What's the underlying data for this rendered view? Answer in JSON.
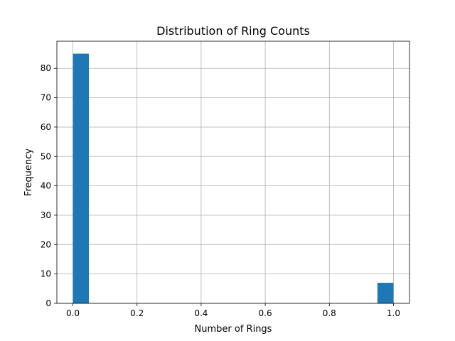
{
  "chart_data": {
    "type": "bar",
    "subtype": "histogram",
    "title": "Distribution of Ring Counts",
    "xlabel": "Number of Rings",
    "ylabel": "Frequency",
    "bins": [
      {
        "x0": 0.0,
        "x1": 0.05,
        "count": 85
      },
      {
        "x0": 0.95,
        "x1": 1.0,
        "count": 7
      }
    ],
    "xlim": [
      -0.05,
      1.05
    ],
    "ylim": [
      0,
      89.25
    ],
    "xticks": [
      0.0,
      0.2,
      0.4,
      0.6,
      0.8,
      1.0
    ],
    "xtick_labels": [
      "0.0",
      "0.2",
      "0.4",
      "0.6",
      "0.8",
      "1.0"
    ],
    "yticks": [
      0,
      10,
      20,
      30,
      40,
      50,
      60,
      70,
      80
    ],
    "ytick_labels": [
      "0",
      "10",
      "20",
      "30",
      "40",
      "50",
      "60",
      "70",
      "80"
    ],
    "grid": true,
    "bar_color": "#1f77b4"
  }
}
